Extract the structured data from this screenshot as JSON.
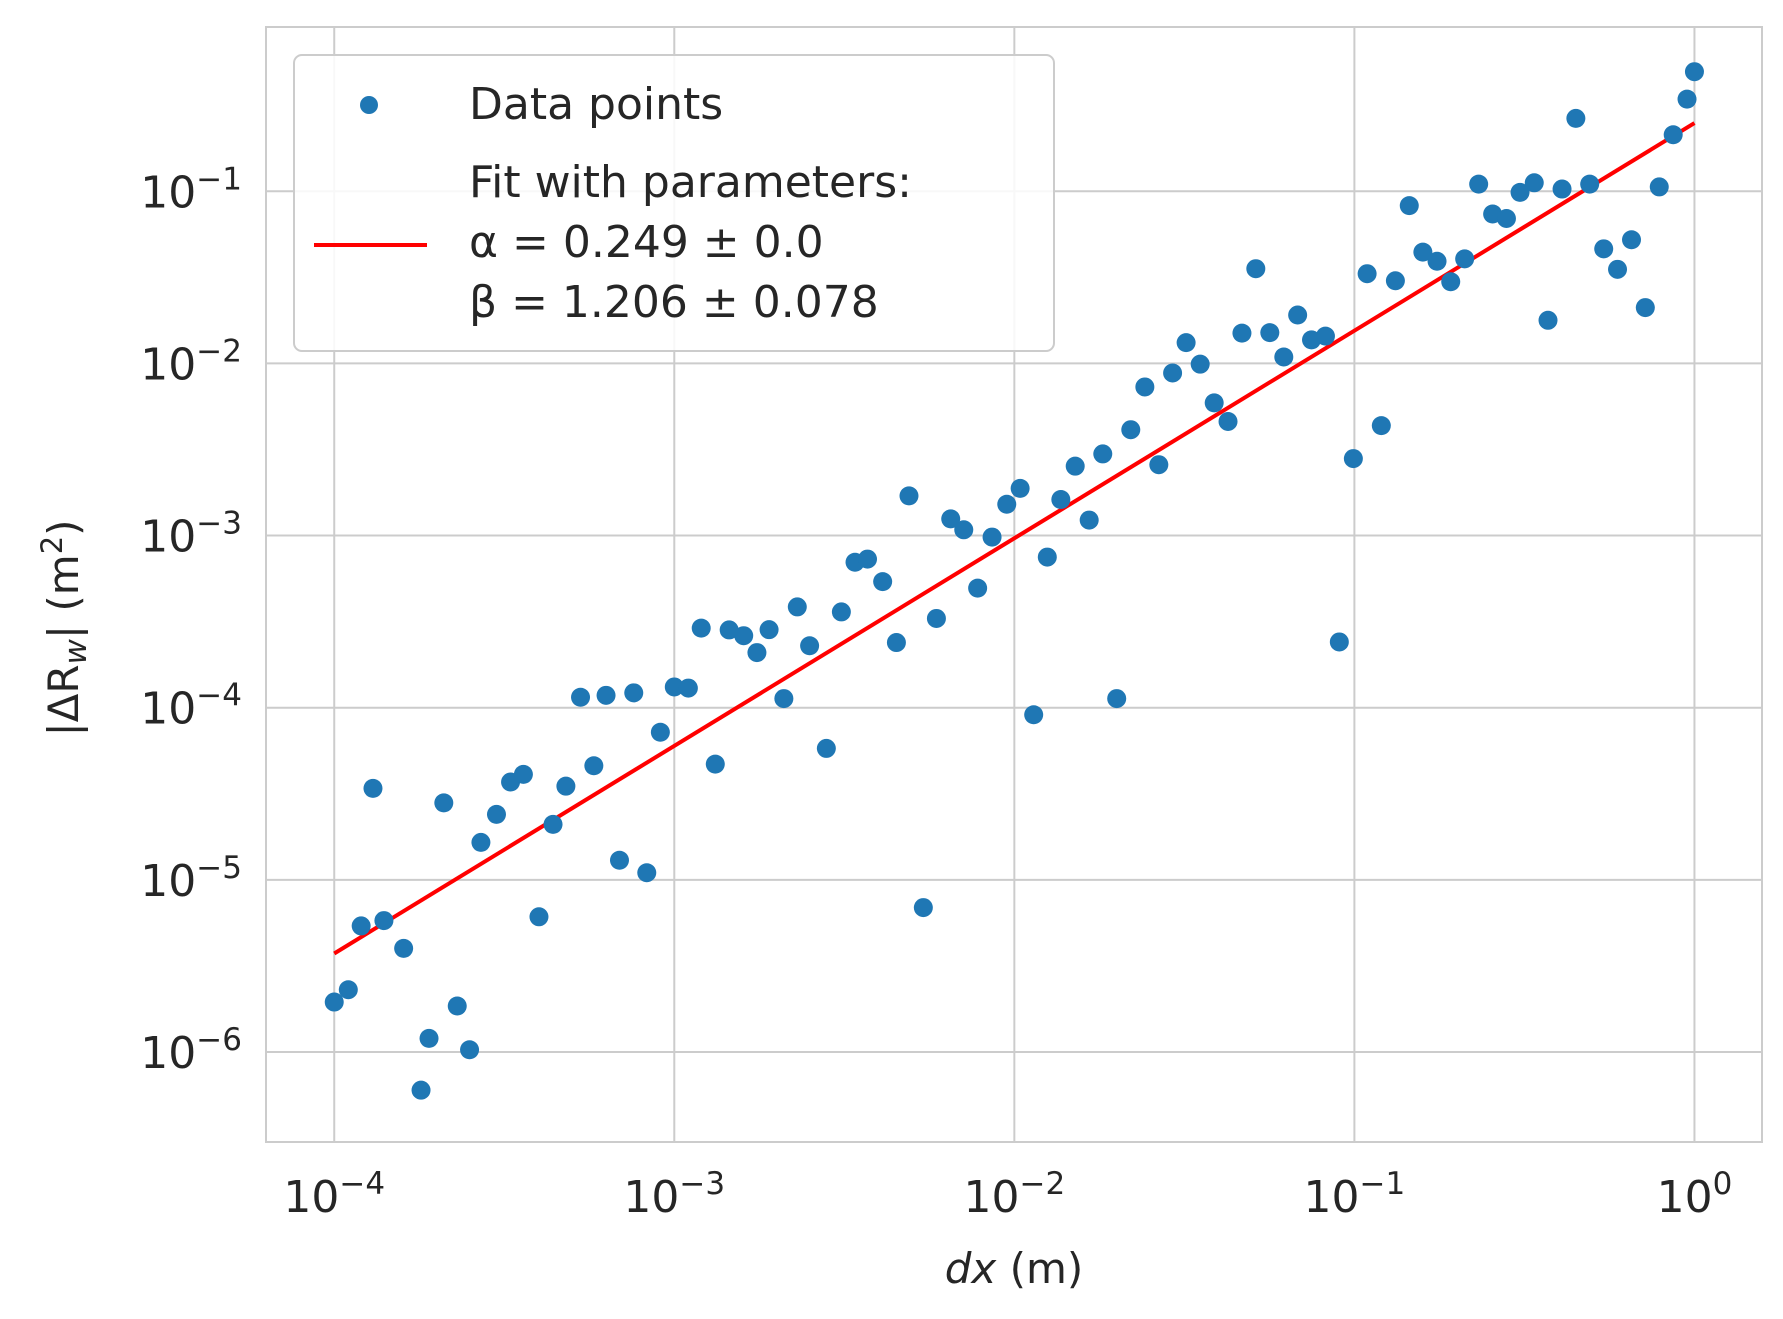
{
  "chart_data": {
    "type": "scatter",
    "x_scale": "log",
    "y_scale": "log",
    "xlim": [
      6.3e-05,
      1.58
    ],
    "ylim": [
      3e-07,
      0.9
    ],
    "x_ticks": [
      0.0001,
      0.001,
      0.01,
      0.1,
      1
    ],
    "x_tick_labels": [
      {
        "base": "10",
        "exp": "−4"
      },
      {
        "base": "10",
        "exp": "−3"
      },
      {
        "base": "10",
        "exp": "−2"
      },
      {
        "base": "10",
        "exp": "−1"
      },
      {
        "base": "10",
        "exp": "0"
      }
    ],
    "y_ticks": [
      1e-06,
      1e-05,
      0.0001,
      0.001,
      0.01,
      0.1
    ],
    "y_tick_labels": [
      {
        "base": "10",
        "exp": "−6"
      },
      {
        "base": "10",
        "exp": "−5"
      },
      {
        "base": "10",
        "exp": "−4"
      },
      {
        "base": "10",
        "exp": "−3"
      },
      {
        "base": "10",
        "exp": "−2"
      },
      {
        "base": "10",
        "exp": "−1"
      }
    ],
    "xlabel": {
      "var": "dx",
      "unit": " (m)"
    },
    "ylabel": {
      "pre": "|ΔR",
      "sub": "w",
      "post": "| (m",
      "sup": "2",
      "end": ")"
    },
    "grid": true,
    "legend": {
      "location": "top-left",
      "entries": [
        "Data points",
        "Fit with parameters:",
        "α = 0.249 ± 0.0",
        "β = 1.206 ± 0.078"
      ]
    },
    "colors": {
      "points": "#1f77b4",
      "fit": "#ff0000",
      "grid": "#cccccc",
      "text": "#262626"
    },
    "series": [
      {
        "name": "Data points",
        "kind": "scatter",
        "points": [
          [
            0.0001,
            1.95e-06
          ],
          [
            0.00011,
            2.3e-06
          ],
          [
            0.00012,
            5.4e-06
          ],
          [
            0.00013,
            3.4e-05
          ],
          [
            0.00014,
            5.8e-06
          ],
          [
            0.00016,
            4e-06
          ],
          [
            0.00018,
            6e-07
          ],
          [
            0.00019,
            1.2e-06
          ],
          [
            0.00021,
            2.8e-05
          ],
          [
            0.00023,
            1.85e-06
          ],
          [
            0.00025,
            1.03e-06
          ],
          [
            0.00027,
            1.65e-05
          ],
          [
            0.0003,
            2.4e-05
          ],
          [
            0.00033,
            3.7e-05
          ],
          [
            0.00036,
            4.1e-05
          ],
          [
            0.0004,
            6.1e-06
          ],
          [
            0.00044,
            2.1e-05
          ],
          [
            0.00048,
            3.5e-05
          ],
          [
            0.00053,
            0.000115
          ],
          [
            0.00058,
            4.6e-05
          ],
          [
            0.00063,
            0.000118
          ],
          [
            0.00069,
            1.3e-05
          ],
          [
            0.00076,
            0.000122
          ],
          [
            0.00083,
            1.1e-05
          ],
          [
            0.00091,
            7.2e-05
          ],
          [
            0.001,
            0.000132
          ],
          [
            0.0011,
            0.00013
          ],
          [
            0.0012,
            0.00029
          ],
          [
            0.00132,
            4.7e-05
          ],
          [
            0.00145,
            0.000283
          ],
          [
            0.0016,
            0.000262
          ],
          [
            0.00175,
            0.000209
          ],
          [
            0.0019,
            0.000284
          ],
          [
            0.0021,
            0.000113
          ],
          [
            0.0023,
            0.000385
          ],
          [
            0.0025,
            0.000229
          ],
          [
            0.0028,
            5.8e-05
          ],
          [
            0.0031,
            0.00036
          ],
          [
            0.0034,
            0.0007
          ],
          [
            0.0037,
            0.00073
          ],
          [
            0.0041,
            0.00054
          ],
          [
            0.0045,
            0.000239
          ],
          [
            0.0049,
            0.0017
          ],
          [
            0.0054,
            6.9e-06
          ],
          [
            0.0059,
            0.00033
          ],
          [
            0.0065,
            0.00125
          ],
          [
            0.0071,
            0.00108
          ],
          [
            0.0078,
            0.000495
          ],
          [
            0.0086,
            0.00098
          ],
          [
            0.0095,
            0.00152
          ],
          [
            0.0104,
            0.00188
          ],
          [
            0.0114,
            9.1e-05
          ],
          [
            0.0125,
            0.00075
          ],
          [
            0.0137,
            0.00162
          ],
          [
            0.0151,
            0.00253
          ],
          [
            0.0166,
            0.00123
          ],
          [
            0.0182,
            0.00298
          ],
          [
            0.02,
            0.000113
          ],
          [
            0.022,
            0.00412
          ],
          [
            0.0242,
            0.0073
          ],
          [
            0.0266,
            0.00258
          ],
          [
            0.0292,
            0.0088
          ],
          [
            0.032,
            0.0132
          ],
          [
            0.0352,
            0.0099
          ],
          [
            0.0387,
            0.0059
          ],
          [
            0.0425,
            0.0046
          ],
          [
            0.0467,
            0.015
          ],
          [
            0.0513,
            0.0355
          ],
          [
            0.0564,
            0.0151
          ],
          [
            0.062,
            0.0109
          ],
          [
            0.0681,
            0.0191
          ],
          [
            0.0748,
            0.0137
          ],
          [
            0.0822,
            0.0144
          ],
          [
            0.0903,
            0.000241
          ],
          [
            0.0993,
            0.0028
          ],
          [
            0.109,
            0.0332
          ],
          [
            0.12,
            0.00435
          ],
          [
            0.132,
            0.0302
          ],
          [
            0.145,
            0.0825
          ],
          [
            0.159,
            0.0443
          ],
          [
            0.175,
            0.0392
          ],
          [
            0.192,
            0.0298
          ],
          [
            0.211,
            0.0405
          ],
          [
            0.232,
            0.11
          ],
          [
            0.255,
            0.0738
          ],
          [
            0.28,
            0.0695
          ],
          [
            0.307,
            0.0985
          ],
          [
            0.338,
            0.112
          ],
          [
            0.371,
            0.0178
          ],
          [
            0.408,
            0.103
          ],
          [
            0.448,
            0.265
          ],
          [
            0.492,
            0.11
          ],
          [
            0.541,
            0.0463
          ],
          [
            0.594,
            0.0352
          ],
          [
            0.653,
            0.0523
          ],
          [
            0.717,
            0.0211
          ],
          [
            0.788,
            0.106
          ],
          [
            0.866,
            0.213
          ],
          [
            0.951,
            0.343
          ],
          [
            1.0,
            0.495
          ]
        ]
      },
      {
        "name": "Fit with parameters:",
        "kind": "line",
        "x_range": [
          0.0001,
          1.0
        ],
        "alpha": 0.249,
        "beta": 1.206
      }
    ]
  }
}
